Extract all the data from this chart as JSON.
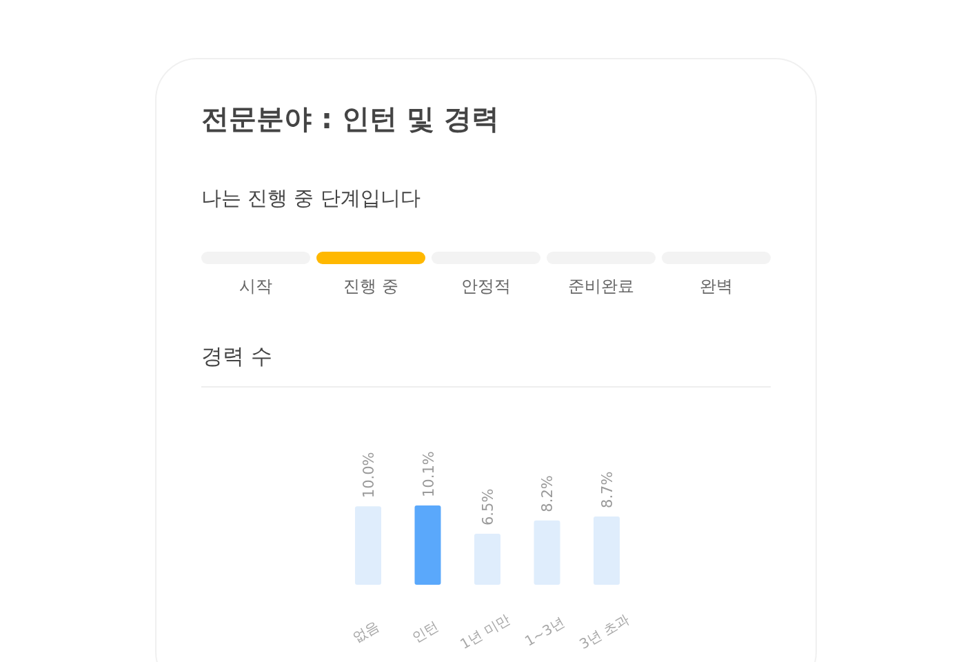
{
  "chart_data": [
    {
      "type": "other",
      "title": "전문분야 : 인턴 및 경력",
      "subtitle": "나는 진행 중 단계입니다",
      "categories": [
        "시작",
        "진행 중",
        "안정적",
        "준비완료",
        "완벽"
      ],
      "colors": [
        "#f3f3f3",
        "#ffb800",
        "#f3f3f3",
        "#f3f3f3",
        "#f3f3f3"
      ]
    },
    {
      "type": "bar",
      "title": "경력 수",
      "categories": [
        "없음",
        "인턴",
        "1년 미만",
        "1~3년",
        "3년 초과"
      ],
      "values": [
        10.0,
        10.1,
        6.5,
        8.2,
        8.7
      ],
      "colors": [
        "#dfedfc",
        "#5aa8fb",
        "#dfedfc",
        "#dfedfc",
        "#dfedfc"
      ],
      "value_labels": [
        "10.0%",
        "10.1%",
        "6.5%",
        "8.2%",
        "8.7%"
      ]
    }
  ]
}
